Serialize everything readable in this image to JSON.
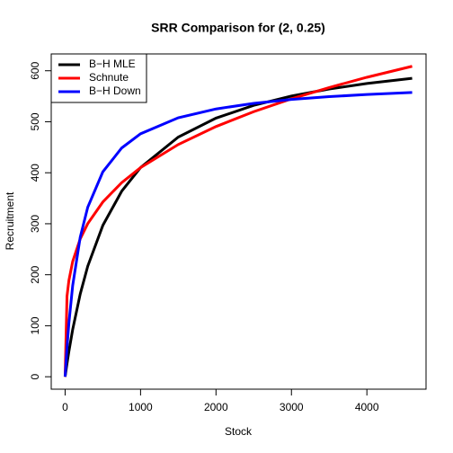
{
  "chart_data": {
    "type": "line",
    "title": "SRR Comparison for (2, 0.25)",
    "x_label": "Stock",
    "y_label": "Recruitment",
    "x": [
      0,
      25,
      50,
      100,
      200,
      300,
      500,
      750,
      1000,
      1500,
      2000,
      2500,
      3000,
      3500,
      4000,
      4600
    ],
    "series": [
      {
        "name": "B−H MLE",
        "color": "#000000",
        "values": [
          0,
          25.8,
          49.6,
          92.4,
          162.1,
          216.8,
          296.7,
          363.8,
          410.1,
          470.0,
          507.1,
          532.2,
          550.4,
          564.2,
          575.0,
          585.2
        ]
      },
      {
        "name": "Schnute",
        "color": "#ff0000",
        "values": [
          0,
          157.8,
          188.7,
          225.9,
          270.3,
          300.2,
          342.7,
          380.6,
          410,
          455.4,
          490.6,
          519.8,
          545.0,
          567.1,
          587.2,
          608.8
        ]
      },
      {
        "name": "B−H Down",
        "color": "#0000ff",
        "values": [
          0,
          57.8,
          105.2,
          178.4,
          273.4,
          332.4,
          401.8,
          448.6,
          476.4,
          507.8,
          525.1,
          536.1,
          543.7,
          549.2,
          553.5,
          557.4
        ]
      }
    ],
    "xlim": [
      -184,
      4784
    ],
    "ylim": [
      -24.4,
      633
    ],
    "xticks": [
      0,
      1000,
      2000,
      3000,
      4000
    ],
    "yticks": [
      0,
      100,
      200,
      300,
      400,
      500,
      600
    ],
    "legend": "topleft"
  }
}
